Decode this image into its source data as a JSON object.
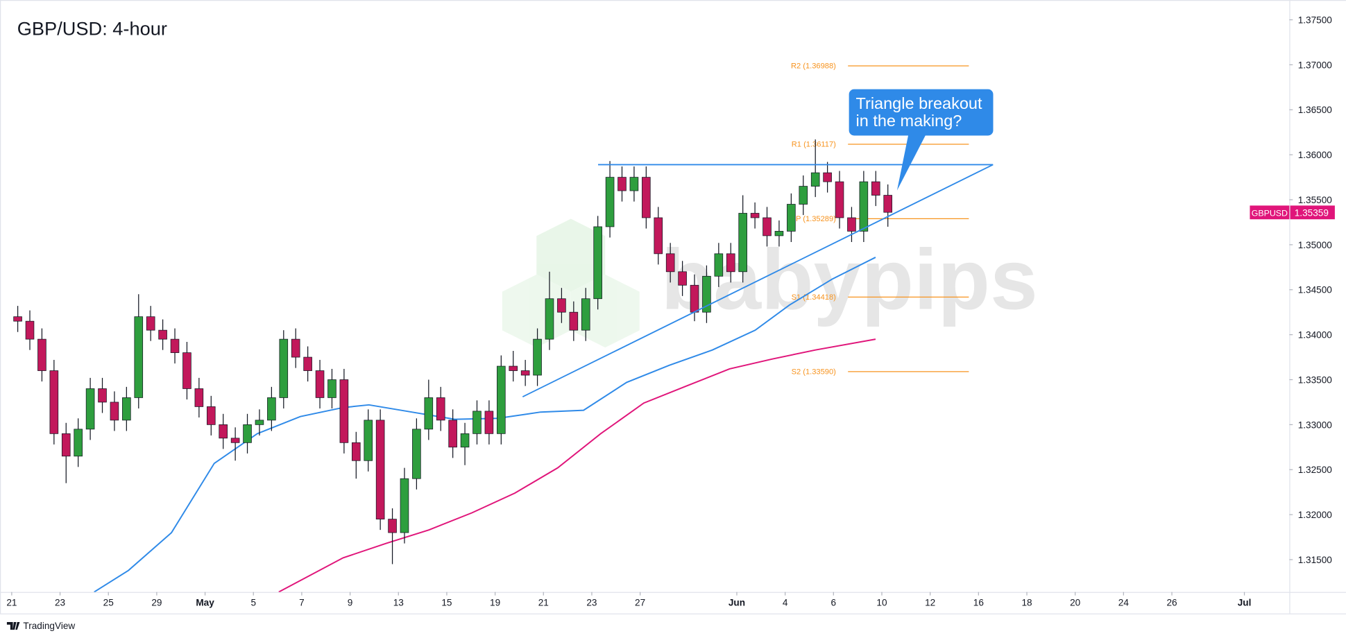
{
  "chart_data": {
    "type": "candlestick",
    "title": "GBP/USD: 4-hour",
    "watermark": "babypips",
    "footer": "TradingView",
    "up_color": "#2e9e3e",
    "down_color": "#c2185b",
    "x": [
      0.25,
      0.75,
      1.25,
      1.75,
      2.25,
      2.75,
      3.25,
      3.75,
      4.25,
      4.75,
      5.25,
      5.75,
      6.25,
      6.75,
      7.25,
      7.75,
      8.25,
      8.75,
      9.25,
      9.75,
      10.25,
      10.75,
      11.25,
      11.75,
      12.25,
      12.75,
      13.25,
      13.75,
      14.25,
      14.75,
      15.25,
      15.75,
      16.25,
      16.75,
      17.25,
      17.75,
      18.25,
      18.75,
      19.25,
      19.75,
      20.25,
      20.75,
      21.25,
      21.75,
      22.25,
      22.75,
      23.25,
      23.75,
      24.25,
      24.75,
      25.25,
      25.75,
      26.25,
      26.75,
      27.25,
      27.75,
      28.25,
      28.75,
      29.25,
      29.75,
      30.25,
      30.75,
      31.25,
      31.75,
      32.25,
      32.75,
      33.25,
      33.75,
      34.25,
      34.75,
      35.25,
      35.75,
      36.25
    ],
    "open": [
      1.342,
      1.3415,
      1.3395,
      1.336,
      1.329,
      1.3265,
      1.3295,
      1.334,
      1.3325,
      1.3305,
      1.333,
      1.342,
      1.3405,
      1.3395,
      1.338,
      1.334,
      1.332,
      1.33,
      1.3285,
      1.328,
      1.33,
      1.3305,
      1.333,
      1.3395,
      1.3375,
      1.336,
      1.333,
      1.335,
      1.328,
      1.326,
      1.3305,
      1.3195,
      1.318,
      1.324,
      1.3295,
      1.333,
      1.3305,
      1.3275,
      1.329,
      1.3315,
      1.329,
      1.3365,
      1.336,
      1.3355,
      1.3395,
      1.344,
      1.3425,
      1.3405,
      1.344,
      1.352,
      1.3575,
      1.356,
      1.3575,
      1.353,
      1.349,
      1.347,
      1.3455,
      1.3425,
      1.3465,
      1.349,
      1.347,
      1.3535,
      1.353,
      1.351,
      1.3515,
      1.3545,
      1.3565,
      1.358,
      1.357,
      1.353,
      1.3515,
      1.357,
      1.3555
    ],
    "high": [
      1.3432,
      1.3427,
      1.3407,
      1.3372,
      1.3302,
      1.3307,
      1.3352,
      1.3352,
      1.3337,
      1.3342,
      1.3445,
      1.3432,
      1.3417,
      1.3407,
      1.3392,
      1.3352,
      1.3332,
      1.3312,
      1.3297,
      1.3312,
      1.3317,
      1.3342,
      1.3405,
      1.3407,
      1.3387,
      1.3372,
      1.3362,
      1.3362,
      1.3292,
      1.3317,
      1.3317,
      1.3207,
      1.3252,
      1.3307,
      1.335,
      1.3342,
      1.3317,
      1.3302,
      1.3327,
      1.3327,
      1.3377,
      1.3382,
      1.3372,
      1.3407,
      1.347,
      1.3452,
      1.3437,
      1.3452,
      1.3532,
      1.3593,
      1.3587,
      1.3587,
      1.3587,
      1.3542,
      1.3502,
      1.3482,
      1.3467,
      1.3477,
      1.3502,
      1.3502,
      1.3555,
      1.3547,
      1.3542,
      1.3527,
      1.3557,
      1.3577,
      1.3617,
      1.3592,
      1.3582,
      1.3542,
      1.3582,
      1.3582,
      1.3567
    ],
    "low": [
      1.3403,
      1.3383,
      1.3348,
      1.3278,
      1.3235,
      1.3253,
      1.3283,
      1.3313,
      1.3293,
      1.3293,
      1.3318,
      1.3393,
      1.3383,
      1.3368,
      1.3328,
      1.3308,
      1.3288,
      1.3273,
      1.326,
      1.3268,
      1.3288,
      1.3293,
      1.3318,
      1.3363,
      1.3348,
      1.3318,
      1.3318,
      1.3268,
      1.324,
      1.3248,
      1.3183,
      1.3145,
      1.3168,
      1.3228,
      1.3283,
      1.3293,
      1.3263,
      1.3255,
      1.3278,
      1.3278,
      1.3278,
      1.3348,
      1.3343,
      1.3343,
      1.3383,
      1.3413,
      1.3393,
      1.3393,
      1.3428,
      1.3508,
      1.3548,
      1.3548,
      1.3518,
      1.3478,
      1.3458,
      1.3443,
      1.3415,
      1.3413,
      1.3453,
      1.3458,
      1.3458,
      1.3518,
      1.3498,
      1.3498,
      1.3503,
      1.3533,
      1.3553,
      1.3558,
      1.3518,
      1.3503,
      1.3503,
      1.3543,
      1.352
    ],
    "close": [
      1.3415,
      1.3395,
      1.336,
      1.329,
      1.3265,
      1.3295,
      1.334,
      1.3325,
      1.3305,
      1.333,
      1.342,
      1.3405,
      1.3395,
      1.338,
      1.334,
      1.332,
      1.33,
      1.3285,
      1.328,
      1.33,
      1.3305,
      1.333,
      1.3395,
      1.3375,
      1.336,
      1.333,
      1.335,
      1.328,
      1.326,
      1.3305,
      1.3195,
      1.318,
      1.324,
      1.3295,
      1.333,
      1.3305,
      1.3275,
      1.329,
      1.3315,
      1.329,
      1.3365,
      1.336,
      1.3355,
      1.3395,
      1.344,
      1.3425,
      1.3405,
      1.344,
      1.352,
      1.3575,
      1.356,
      1.3575,
      1.353,
      1.349,
      1.347,
      1.3455,
      1.3425,
      1.3465,
      1.349,
      1.347,
      1.3535,
      1.353,
      1.351,
      1.3515,
      1.3545,
      1.3565,
      1.358,
      1.357,
      1.353,
      1.3515,
      1.357,
      1.3555,
      1.3536
    ],
    "moving_averages": [
      {
        "color": "#2f8ae8",
        "x": [
          3.41,
          4.83,
          6.61,
          8.38,
          10.16,
          11.94,
          13.71,
          14.78,
          16.55,
          18.33,
          20.11,
          21.88,
          23.66,
          25.44,
          27.21,
          28.99,
          30.76,
          32.18,
          33.96,
          35.74
        ],
        "values": [
          1.3114,
          1.3138,
          1.318,
          1.3257,
          1.329,
          1.3309,
          1.3319,
          1.3322,
          1.3314,
          1.3306,
          1.3307,
          1.3314,
          1.3316,
          1.3347,
          1.3366,
          1.3383,
          1.3405,
          1.3433,
          1.3462,
          1.3486
        ]
      },
      {
        "color": "#e0157a",
        "x": [
          11.05,
          13.71,
          15.49,
          17.26,
          19.04,
          20.82,
          22.59,
          24.37,
          26.15,
          27.92,
          29.7,
          31.47,
          33.25,
          35.74
        ],
        "values": [
          1.3114,
          1.3152,
          1.3168,
          1.3183,
          1.3202,
          1.3224,
          1.3252,
          1.329,
          1.3324,
          1.3343,
          1.3362,
          1.3373,
          1.3383,
          1.3395
        ]
      }
    ],
    "trendlines": [
      {
        "color": "#2f8ae8",
        "x": [
          24.26,
          40.6
        ],
        "values": [
          1.3589,
          1.3589
        ]
      },
      {
        "color": "#2f8ae8",
        "x": [
          21.14,
          40.6
        ],
        "values": [
          1.3331,
          1.3589
        ]
      }
    ],
    "pivot_color": "#f7931e",
    "pivots": [
      {
        "label": "R2 (1.36988)",
        "value": 1.36988,
        "x": [
          34.6,
          39.6
        ]
      },
      {
        "label": "R1 (1.36117)",
        "value": 1.36117,
        "x": [
          34.6,
          39.6
        ]
      },
      {
        "label": "P (1.35289)",
        "value": 1.35289,
        "x": [
          34.6,
          39.6
        ]
      },
      {
        "label": "S1 (1.34418)",
        "value": 1.34418,
        "x": [
          34.6,
          39.6
        ]
      },
      {
        "label": "S2 (1.33590)",
        "value": 1.3359,
        "x": [
          34.6,
          39.6
        ]
      }
    ],
    "annotation": [
      "Triangle breakout",
      "in the making?"
    ],
    "last_price": {
      "symbol": "GBPUSD",
      "value": 1.35359,
      "color": "#e0157a"
    },
    "xlim": [
      -0.2,
      52.86
    ],
    "ylim": [
      1.3114,
      1.3772
    ],
    "xticks": [
      {
        "value": 0,
        "label": "21"
      },
      {
        "value": 2,
        "label": "23"
      },
      {
        "value": 4,
        "label": "25"
      },
      {
        "value": 6,
        "label": "29"
      },
      {
        "value": 8,
        "label": "May"
      },
      {
        "value": 10,
        "label": "5"
      },
      {
        "value": 12,
        "label": "7"
      },
      {
        "value": 14,
        "label": "9"
      },
      {
        "value": 16,
        "label": "13"
      },
      {
        "value": 18,
        "label": "15"
      },
      {
        "value": 20,
        "label": "19"
      },
      {
        "value": 22,
        "label": "21"
      },
      {
        "value": 24,
        "label": "23"
      },
      {
        "value": 26,
        "label": "27"
      },
      {
        "value": 30,
        "label": "Jun"
      },
      {
        "value": 32,
        "label": "4"
      },
      {
        "value": 34,
        "label": "6"
      },
      {
        "value": 36,
        "label": "10"
      },
      {
        "value": 38,
        "label": "12"
      },
      {
        "value": 40,
        "label": "16"
      },
      {
        "value": 42,
        "label": "18"
      },
      {
        "value": 44,
        "label": "20"
      },
      {
        "value": 46,
        "label": "24"
      },
      {
        "value": 48,
        "label": "26"
      },
      {
        "value": 51,
        "label": "Jul"
      }
    ],
    "yticks": [
      {
        "value": 1.315,
        "label": "1.31500"
      },
      {
        "value": 1.32,
        "label": "1.32000"
      },
      {
        "value": 1.325,
        "label": "1.32500"
      },
      {
        "value": 1.33,
        "label": "1.33000"
      },
      {
        "value": 1.335,
        "label": "1.33500"
      },
      {
        "value": 1.34,
        "label": "1.34000"
      },
      {
        "value": 1.345,
        "label": "1.34500"
      },
      {
        "value": 1.35,
        "label": "1.35000"
      },
      {
        "value": 1.355,
        "label": "1.35500"
      },
      {
        "value": 1.36,
        "label": "1.36000"
      },
      {
        "value": 1.365,
        "label": "1.36500"
      },
      {
        "value": 1.37,
        "label": "1.37000"
      },
      {
        "value": 1.375,
        "label": "1.37500"
      }
    ]
  }
}
